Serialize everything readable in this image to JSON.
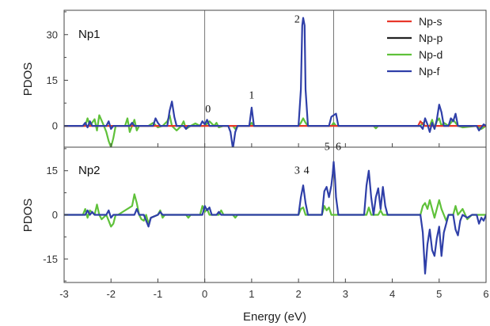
{
  "chart_data": {
    "type": "line",
    "xlabel": "Energy (eV)",
    "xlim": [
      -3,
      6
    ],
    "x_ticks": [
      -3,
      -2,
      -1,
      0,
      1,
      2,
      3,
      4,
      5,
      6
    ],
    "vlines": [
      0,
      2.75
    ],
    "legend": {
      "placement": "top-right",
      "entries": [
        {
          "name": "Np-s",
          "color": "#e8372b"
        },
        {
          "name": "Np-p",
          "color": "#222222"
        },
        {
          "name": "Np-d",
          "color": "#5fc13a"
        },
        {
          "name": "Np-f",
          "color": "#2f3fa8"
        }
      ]
    },
    "panels": [
      {
        "label": "Np1",
        "ylabel": "PDOS",
        "ylim": [
          -7,
          38
        ],
        "y_ticks": [
          0,
          15,
          30
        ],
        "peak_labels": [
          {
            "text": "0",
            "x": 0.07,
            "y": 4.5
          },
          {
            "text": "1",
            "x": 1.0,
            "y": 9.0
          },
          {
            "text": "2",
            "x": 1.97,
            "y": 34.0
          }
        ],
        "series": [
          {
            "name": "Np-d",
            "color": "#5fc13a",
            "x": [
              -3,
              -2.55,
              -2.5,
              -2.45,
              -2.35,
              -2.3,
              -2.25,
              -2.15,
              -2.1,
              -2.05,
              -2.0,
              -1.95,
              -1.9,
              -1.7,
              -1.65,
              -1.6,
              -1.5,
              -1.45,
              -1.4,
              -1.2,
              -1.1,
              -1.0,
              -0.9,
              -0.8,
              -0.75,
              -0.7,
              -0.6,
              -0.5,
              -0.45,
              -0.4,
              -0.3,
              -0.2,
              -0.1,
              0,
              0.1,
              0.2,
              0.25,
              0.3,
              0.4,
              0.6,
              0.65,
              0.7,
              0.95,
              1.0,
              1.05,
              2.0,
              2.05,
              2.1,
              2.15,
              2.2,
              2.7,
              2.75,
              2.8,
              3.6,
              3.65,
              3.7,
              4.6,
              4.65,
              4.7,
              4.8,
              4.85,
              4.9,
              4.95,
              5.0,
              5.05,
              5.1,
              5.2,
              5.3,
              5.4,
              5.5,
              5.8,
              5.9,
              6
            ],
            "y": [
              0,
              0,
              2.5,
              0,
              2.2,
              -1.5,
              3.5,
              0,
              -2,
              -5,
              -7,
              -4,
              0,
              0,
              2.5,
              -2,
              2.0,
              -1.5,
              0,
              0,
              1.0,
              -0.5,
              0,
              1.5,
              3.5,
              0,
              -1.5,
              0,
              1.5,
              -1,
              0,
              0.8,
              0,
              0,
              1.5,
              0,
              1.0,
              -0.5,
              0,
              0,
              -1.0,
              0,
              0,
              1.0,
              0,
              0,
              1.0,
              2.5,
              1.0,
              0,
              0,
              1.0,
              0,
              0,
              -0.8,
              0,
              0,
              1.0,
              0,
              0,
              2.0,
              -1.0,
              1.5,
              2.5,
              0,
              1.0,
              0,
              2.0,
              0,
              -0.5,
              0,
              -1.0,
              0
            ]
          },
          {
            "name": "Np-s",
            "color": "#e8372b",
            "x": [
              -3,
              4.55,
              4.6,
              4.65,
              4.7,
              6
            ],
            "y": [
              0,
              0,
              1.5,
              0.6,
              0,
              0
            ]
          },
          {
            "name": "Np-f",
            "color": "#2f3fa8",
            "x": [
              -3,
              -2.6,
              -2.55,
              -2.5,
              -2.45,
              -2.4,
              -2.1,
              -2.05,
              -2.0,
              -1.95,
              -1.6,
              -1.55,
              -1.5,
              -1.1,
              -1.05,
              -1.0,
              -0.95,
              -0.8,
              -0.75,
              -0.7,
              -0.65,
              -0.6,
              -0.45,
              -0.4,
              -0.35,
              -0.1,
              -0.05,
              0.0,
              0.05,
              0.1,
              0.5,
              0.55,
              0.6,
              0.65,
              0.7,
              0.95,
              1.0,
              1.05,
              2.0,
              2.05,
              2.08,
              2.1,
              2.13,
              2.15,
              2.2,
              2.65,
              2.7,
              2.75,
              2.8,
              2.85,
              4.6,
              4.65,
              4.7,
              4.75,
              4.8,
              4.85,
              4.9,
              4.95,
              5.0,
              5.05,
              5.1,
              5.2,
              5.25,
              5.3,
              5.35,
              5.4,
              5.5,
              5.8,
              5.85,
              5.9,
              5.95,
              6
            ],
            "y": [
              0,
              0,
              1.0,
              -0.5,
              1.5,
              0,
              0,
              1.5,
              -1.0,
              0,
              0,
              1.0,
              0,
              0,
              2.5,
              1.0,
              0,
              0,
              5.0,
              8.0,
              3.0,
              0,
              0,
              -1.0,
              0,
              0,
              1.5,
              0.5,
              2.0,
              0,
              0,
              -2.0,
              -7.5,
              -2.0,
              0,
              0,
              6.0,
              0,
              0,
              12.0,
              33.0,
              35.5,
              33.0,
              12.0,
              0,
              0,
              3.0,
              3.5,
              4.0,
              0,
              0,
              -1.0,
              2.5,
              0.5,
              -2.0,
              1.0,
              -1.0,
              2.0,
              7.0,
              4.5,
              0,
              0,
              2.5,
              1.5,
              4.0,
              0,
              0,
              0,
              -1.5,
              -0.5,
              0.5,
              0
            ]
          }
        ]
      },
      {
        "label": "Np2",
        "ylabel": "PDOS",
        "ylim": [
          -23,
          23
        ],
        "y_ticks": [
          -15,
          0,
          15
        ],
        "peak_labels": [
          {
            "text": "3",
            "x": 1.97,
            "y": 14.0
          },
          {
            "text": "4",
            "x": 2.17,
            "y": 14.0
          },
          {
            "text": "5",
            "x": 2.61,
            "y": 22.0
          },
          {
            "text": "6",
            "x": 2.85,
            "y": 22.0
          }
        ],
        "series": [
          {
            "name": "Np-d",
            "color": "#5fc13a",
            "x": [
              -3,
              -2.6,
              -2.55,
              -2.5,
              -2.45,
              -2.35,
              -2.3,
              -2.25,
              -2.2,
              -2.1,
              -2.05,
              -2.0,
              -1.95,
              -1.9,
              -1.85,
              -1.55,
              -1.5,
              -1.45,
              -1.4,
              -1.35,
              -1.3,
              -1.25,
              -1.2,
              -1.15,
              -1.0,
              -0.95,
              -0.9,
              -0.85,
              -0.4,
              -0.35,
              -0.3,
              -0.1,
              -0.05,
              0.0,
              0.05,
              0.1,
              0.3,
              0.35,
              0.4,
              0.6,
              0.65,
              0.7,
              2.0,
              2.05,
              2.1,
              2.15,
              2.5,
              2.55,
              2.6,
              2.65,
              2.7,
              3.45,
              3.5,
              3.55,
              3.7,
              3.75,
              3.8,
              4.6,
              4.65,
              4.7,
              4.75,
              4.8,
              4.85,
              4.9,
              4.95,
              5.0,
              5.05,
              5.1,
              5.15,
              5.2,
              5.3,
              5.35,
              5.4,
              5.5,
              5.6,
              5.7,
              5.8,
              6
            ],
            "y": [
              0,
              0,
              2.0,
              -1.0,
              1.5,
              0,
              3.5,
              0,
              -1.5,
              0,
              -2.0,
              -4.0,
              -3.0,
              0,
              0,
              3.0,
              7.0,
              4.0,
              0,
              -1.5,
              -2.0,
              0,
              -3.0,
              -1.0,
              0,
              1.5,
              -1.0,
              0,
              0,
              -1.0,
              0,
              0,
              3.0,
              1.0,
              2.0,
              0,
              0,
              1.5,
              0,
              0,
              -1.0,
              0,
              0,
              2.0,
              2.5,
              0,
              0,
              3.0,
              1.5,
              2.5,
              0,
              0,
              2.5,
              0,
              0,
              1.5,
              0,
              0,
              3.0,
              4.0,
              2.0,
              5.0,
              2.0,
              -1.0,
              2.0,
              5.0,
              2.0,
              0,
              -2.0,
              0,
              0,
              3.0,
              0,
              2.0,
              -1.5,
              0,
              0,
              0
            ]
          },
          {
            "name": "Np-f",
            "color": "#2f3fa8",
            "x": [
              -3,
              -2.55,
              -2.5,
              -2.45,
              -2.4,
              -2.35,
              -2.1,
              -2.05,
              -2.0,
              -1.95,
              -1.5,
              -1.45,
              -1.4,
              -1.3,
              -1.25,
              -1.2,
              -1.15,
              -1.0,
              -0.95,
              -0.9,
              -0.05,
              0.0,
              0.05,
              0.1,
              0.15,
              0.25,
              0.3,
              0.35,
              2.0,
              2.05,
              2.1,
              2.15,
              2.2,
              2.5,
              2.55,
              2.6,
              2.65,
              2.7,
              2.73,
              2.75,
              2.78,
              2.8,
              2.85,
              3.4,
              3.45,
              3.5,
              3.55,
              3.6,
              3.65,
              3.7,
              3.75,
              3.8,
              3.85,
              3.9,
              4.6,
              4.65,
              4.7,
              4.75,
              4.8,
              4.85,
              4.9,
              4.95,
              5.0,
              5.05,
              5.1,
              5.15,
              5.2,
              5.3,
              5.35,
              5.4,
              5.45,
              5.5,
              5.6,
              5.7,
              5.8,
              5.85,
              5.9,
              5.95,
              6
            ],
            "y": [
              0,
              0,
              1.5,
              0,
              1.0,
              0,
              0,
              1.5,
              -1.0,
              0,
              0,
              2.0,
              0,
              0,
              -2.0,
              -4.0,
              -1.0,
              0,
              1.0,
              0,
              0,
              3.0,
              1.5,
              2.5,
              0,
              0,
              1.0,
              0,
              0,
              6.0,
              10.0,
              4.0,
              0,
              0,
              8.0,
              9.5,
              6.0,
              10.0,
              14.0,
              18.0,
              12.0,
              6.0,
              0,
              0,
              10.0,
              15.0,
              6.0,
              0,
              6.0,
              9.0,
              2.0,
              9.5,
              3.0,
              0,
              0,
              -6.0,
              -20.0,
              -10.0,
              -5.0,
              -12.0,
              -14.0,
              -8.0,
              -4.0,
              -14.0,
              -6.0,
              -3.0,
              0,
              0,
              -5.0,
              -7.0,
              -2.0,
              0,
              -1.0,
              0,
              0,
              -3.0,
              -1.0,
              -2.0,
              0
            ]
          }
        ]
      }
    ]
  }
}
